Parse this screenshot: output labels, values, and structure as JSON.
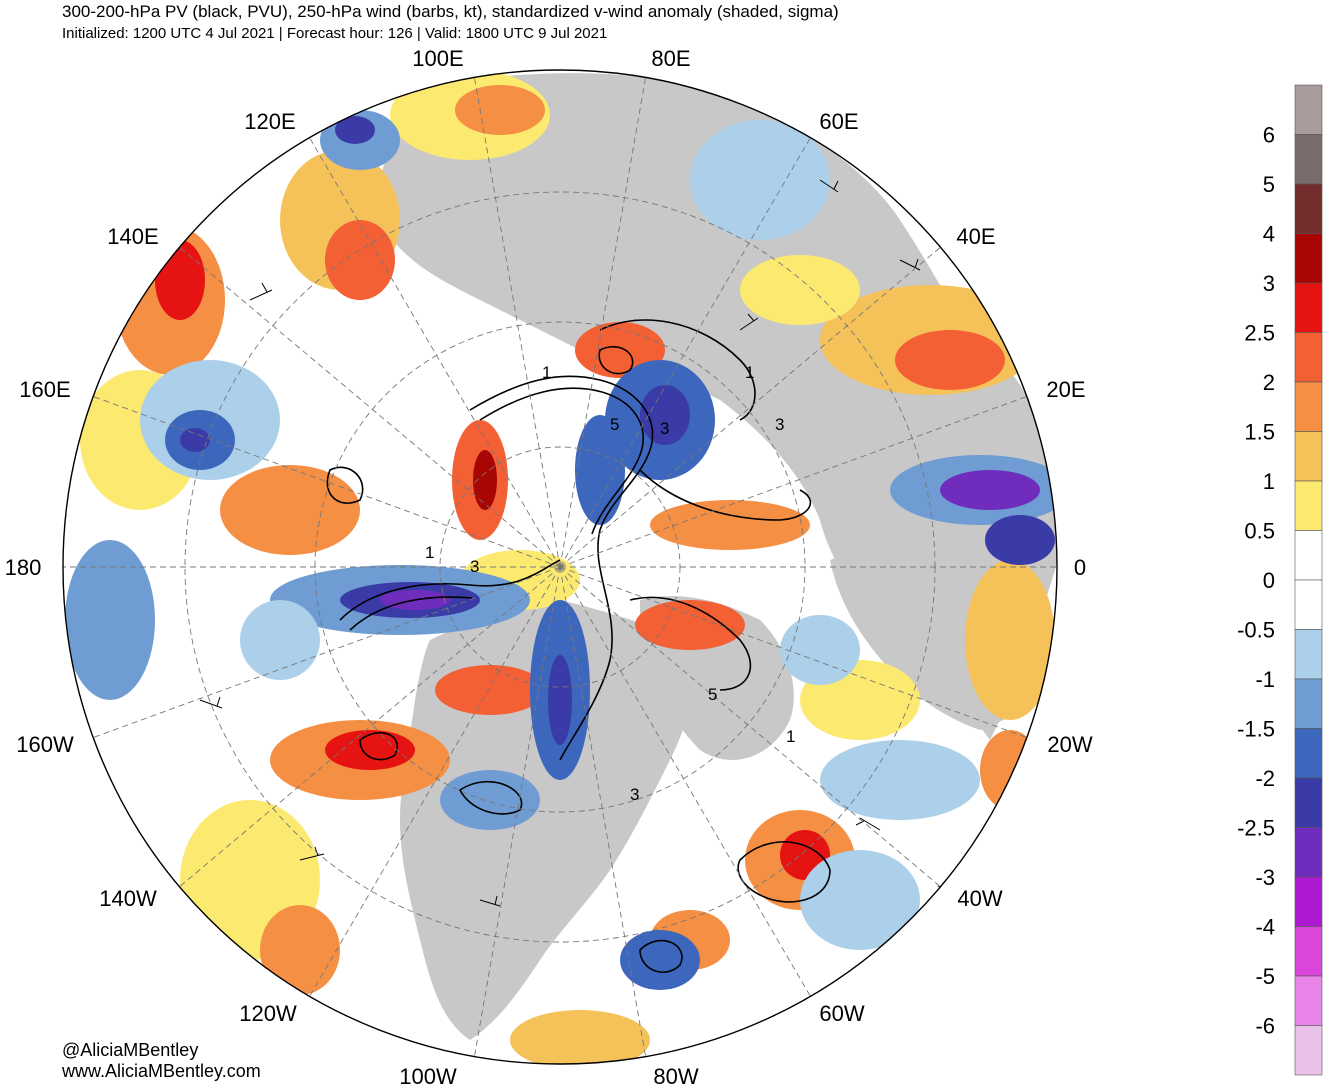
{
  "header": {
    "title": "300-200-hPa PV (black, PVU), 250-hPa wind (barbs, kt), standardized v-wind anomaly (shaded, sigma)",
    "subtitle": "Initialized: 1200 UTC 4 Jul 2021 | Forecast hour: 126 | Valid: 1800 UTC 9 Jul 2021"
  },
  "map": {
    "projection": "north polar stereographic",
    "longitude_labels": [
      {
        "lon": 100,
        "text": "100E"
      },
      {
        "lon": 80,
        "text": "80E"
      },
      {
        "lon": 120,
        "text": "120E"
      },
      {
        "lon": 60,
        "text": "60E"
      },
      {
        "lon": 140,
        "text": "140E"
      },
      {
        "lon": 40,
        "text": "40E"
      },
      {
        "lon": 160,
        "text": "160E"
      },
      {
        "lon": 20,
        "text": "20E"
      },
      {
        "lon": 180,
        "text": "180"
      },
      {
        "lon": 0,
        "text": "0"
      },
      {
        "lon": -160,
        "text": "160W"
      },
      {
        "lon": -20,
        "text": "20W"
      },
      {
        "lon": -140,
        "text": "140W"
      },
      {
        "lon": -40,
        "text": "40W"
      },
      {
        "lon": -120,
        "text": "120W"
      },
      {
        "lon": -60,
        "text": "60W"
      },
      {
        "lon": -100,
        "text": "100W"
      },
      {
        "lon": -80,
        "text": "80W"
      }
    ],
    "pv_contour_labels": [
      "1",
      "5",
      "3",
      "1",
      "3",
      "1",
      "3",
      "5",
      "1",
      "3"
    ]
  },
  "colorbar": {
    "label_values": [
      "6",
      "5",
      "4",
      "3",
      "2.5",
      "2",
      "1.5",
      "1",
      "0.5",
      "0",
      "-0.5",
      "-1",
      "-1.5",
      "-2",
      "-2.5",
      "-3",
      "-4",
      "-5",
      "-6"
    ],
    "colors": [
      "#a89c9c",
      "#7a6c6c",
      "#742d2d",
      "#a80505",
      "#e61313",
      "#f26033",
      "#f48f44",
      "#f5c25a",
      "#fce970",
      "#ffffff",
      "#ffffff",
      "#acd0ea",
      "#6f9dd3",
      "#3d67bd",
      "#3b3ba7",
      "#6f2cbd",
      "#ad1ad1",
      "#d946d9",
      "#e985e9",
      "#e9c2ea"
    ]
  },
  "credits": {
    "handle": "@AliciaMBentley",
    "website": "www.AliciaMBentley.com"
  }
}
